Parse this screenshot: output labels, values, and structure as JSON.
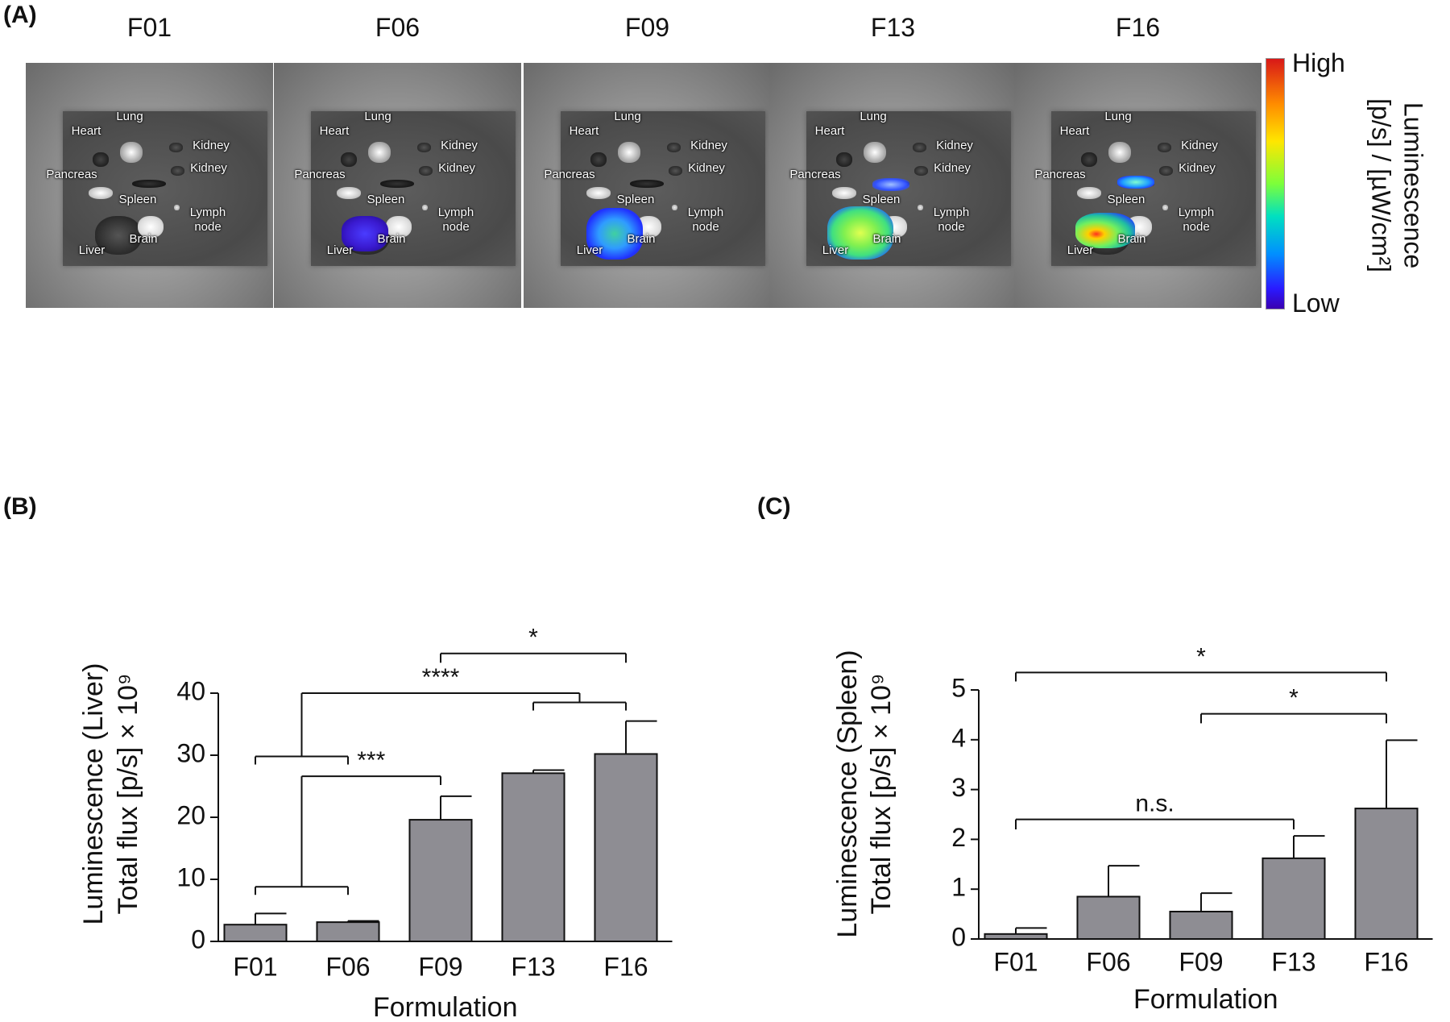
{
  "panel_labels": [
    "(A)",
    "(B)",
    "(C)"
  ],
  "panel_a": {
    "images": [
      {
        "title": "F01",
        "organs": [
          "Heart",
          "Lung",
          "Kidney",
          "Kidney",
          "Pancreas",
          "Spleen",
          "Lymph node",
          "Liver",
          "Brain"
        ]
      },
      {
        "title": "F06",
        "organs": [
          "Heart",
          "Lung",
          "Kidney",
          "Kidney",
          "Pancreas",
          "Spleen",
          "Lymph node",
          "Liver",
          "Brain"
        ]
      },
      {
        "title": "F09",
        "organs": [
          "Heart",
          "Lung",
          "Kidney",
          "Kidney",
          "Pancreas",
          "Spleen",
          "Lymph node",
          "Liver",
          "Brain"
        ]
      },
      {
        "title": "F13",
        "organs": [
          "Heart",
          "Lung",
          "Kidney",
          "Kidney",
          "Pancreas",
          "Spleen",
          "Lymph node",
          "Liver",
          "Brain"
        ]
      },
      {
        "title": "F16",
        "organs": [
          "Heart",
          "Lung",
          "Kidney",
          "Kidney",
          "Pancreas",
          "Spleen",
          "Lymph node",
          "Liver",
          "Brain"
        ]
      }
    ],
    "colorbar": {
      "high": "High",
      "low": "Low",
      "title": [
        "Luminescence",
        "[p/s] / [µW/cm²]"
      ]
    }
  },
  "chart_data": [
    {
      "type": "bar",
      "categories": [
        "F01",
        "F06",
        "F09",
        "F13",
        "F16"
      ],
      "values": [
        2.7,
        3.1,
        19.6,
        27.1,
        30.2
      ],
      "errors": [
        1.8,
        0.2,
        3.8,
        0.5,
        5.3
      ],
      "color": "#8e8d93",
      "ylim": [
        0,
        40
      ],
      "yticks": [
        0,
        10,
        20,
        30,
        40
      ],
      "y_label": [
        "Luminescence (Liver)",
        "Total flux [p/s] × 10⁹"
      ],
      "x_label": "Formulation",
      "annotations": [
        {
          "text": "*",
          "groups": [
            [
              2
            ],
            [
              4
            ]
          ]
        },
        {
          "text": "****",
          "groups": [
            [
              0,
              1
            ],
            [
              3,
              4
            ]
          ]
        },
        {
          "text": "***",
          "groups": [
            [
              0,
              1
            ],
            [
              2
            ]
          ]
        }
      ]
    },
    {
      "type": "bar",
      "categories": [
        "F01",
        "F06",
        "F09",
        "F13",
        "F16"
      ],
      "values": [
        0.1,
        0.85,
        0.55,
        1.62,
        2.62
      ],
      "errors": [
        0.12,
        0.62,
        0.37,
        0.45,
        1.37
      ],
      "color": "#8e8d93",
      "ylim": [
        0,
        5
      ],
      "yticks": [
        0,
        1,
        2,
        3,
        4,
        5
      ],
      "y_label": [
        "Luminescence (Spleen)",
        "Total flux [p/s] × 10⁹"
      ],
      "x_label": "Formulation",
      "annotations": [
        {
          "text": "*",
          "groups": [
            [
              0
            ],
            [
              4
            ]
          ]
        },
        {
          "text": "*",
          "groups": [
            [
              2
            ],
            [
              4
            ]
          ]
        },
        {
          "text": "n.s.",
          "groups": [
            [
              0
            ],
            [
              3
            ]
          ]
        }
      ]
    }
  ]
}
